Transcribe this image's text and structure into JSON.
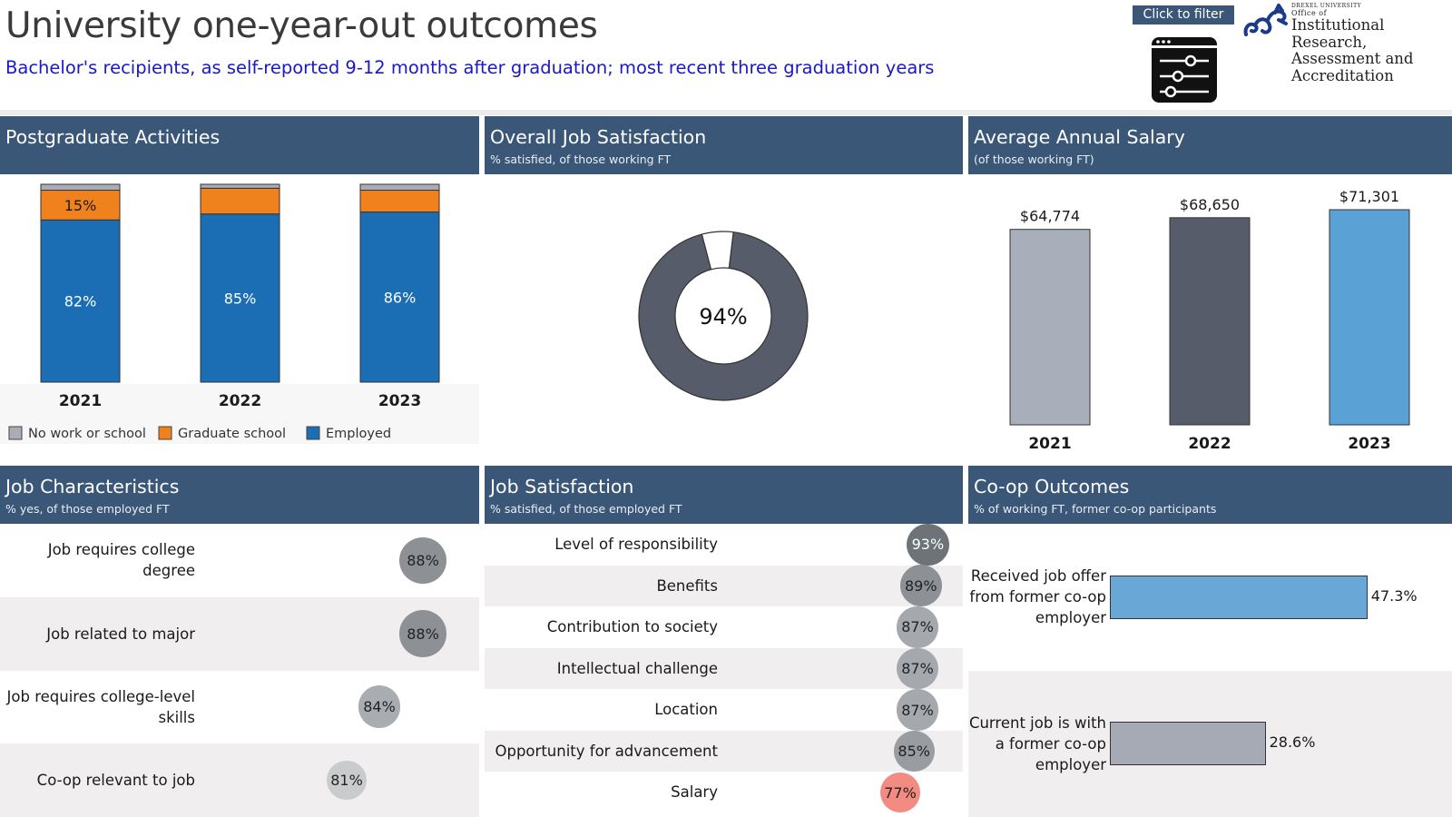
{
  "header": {
    "title": "University one-year-out outcomes",
    "subtitle": "Bachelor's recipients, as self-reported 9-12 months after graduation; most recent three graduation years",
    "filter_label": "Click to filter",
    "logo": {
      "university": "DREXEL UNIVERSITY",
      "office_of": "Office of",
      "line1": "Institutional Research,",
      "line2": "Assessment and",
      "line3": "Accreditation"
    }
  },
  "panels": {
    "postgrad": {
      "title": "Postgraduate Activities",
      "subtitle": ""
    },
    "satisfaction": {
      "title": "Overall Job Satisfaction",
      "subtitle": "% satisfied, of those working FT"
    },
    "salary": {
      "title": "Average Annual Salary",
      "subtitle": "(of those working FT)"
    },
    "jobchar": {
      "title": "Job Characteristics",
      "subtitle": "% yes, of those employed FT"
    },
    "jobsat": {
      "title": "Job Satisfaction",
      "subtitle": "% satisfied, of those employed FT"
    },
    "coop": {
      "title": "Co-op Outcomes",
      "subtitle": "% of working FT, former co-op participants"
    }
  },
  "colors": {
    "header_bg": "#3b5778",
    "employed": "#1b6eb3",
    "grad_school": "#f0821e",
    "no_work": "#a9adb6",
    "donut_dark": "#565c6a",
    "salary_2021": "#a9afba",
    "salary_2022": "#565c6a",
    "salary_2023": "#5aa2d6",
    "coop_bar1": "#69a8d6",
    "coop_bar2": "#a5aab4",
    "low_highlight": "#f28b82"
  },
  "chart_data": [
    {
      "type": "bar",
      "id": "postgrad",
      "stacked": true,
      "categories": [
        "2021",
        "2022",
        "2023"
      ],
      "series": [
        {
          "name": "Employed",
          "values": [
            82,
            85,
            86
          ],
          "labels": [
            "82%",
            "85%",
            "86%"
          ]
        },
        {
          "name": "Graduate school",
          "values": [
            15,
            13,
            11
          ],
          "labels": [
            "15%",
            "",
            ""
          ]
        },
        {
          "name": "No work or school",
          "values": [
            3,
            2,
            3
          ],
          "labels": [
            "",
            "",
            ""
          ]
        }
      ],
      "legend": [
        "No work or school",
        "Graduate school",
        "Employed"
      ],
      "legend_position": "bottom-left",
      "ylim": [
        0,
        100
      ]
    },
    {
      "type": "pie",
      "id": "satisfaction",
      "donut": true,
      "values": [
        94,
        6
      ],
      "center_label": "94%"
    },
    {
      "type": "bar",
      "id": "salary",
      "categories": [
        "2021",
        "2022",
        "2023"
      ],
      "values": [
        64774,
        68650,
        71301
      ],
      "labels": [
        "$64,774",
        "$68,650",
        "$71,301"
      ],
      "ylim": [
        0,
        75000
      ]
    },
    {
      "type": "table",
      "id": "jobchar",
      "rows": [
        {
          "label_lines": [
            "Job requires college",
            "degree"
          ],
          "value": 88,
          "display": "88%"
        },
        {
          "label_lines": [
            "Job related to major"
          ],
          "value": 88,
          "display": "88%"
        },
        {
          "label_lines": [
            "Job requires college-level",
            "skills"
          ],
          "value": 84,
          "display": "84%"
        },
        {
          "label_lines": [
            "Co-op relevant to job"
          ],
          "value": 81,
          "display": "81%"
        }
      ]
    },
    {
      "type": "table",
      "id": "jobsat",
      "rows": [
        {
          "label": "Level of responsibility",
          "value": 93,
          "display": "93%"
        },
        {
          "label": "Benefits",
          "value": 89,
          "display": "89%"
        },
        {
          "label": "Contribution to society",
          "value": 87,
          "display": "87%"
        },
        {
          "label": "Intellectual challenge",
          "value": 87,
          "display": "87%"
        },
        {
          "label": "Location",
          "value": 87,
          "display": "87%"
        },
        {
          "label": "Opportunity for advancement",
          "value": 85,
          "display": "85%"
        },
        {
          "label": "Salary",
          "value": 77,
          "display": "77%"
        }
      ]
    },
    {
      "type": "bar",
      "id": "coop",
      "orientation": "horizontal",
      "categories": [
        [
          "Received job offer",
          "from former co-op",
          "employer"
        ],
        [
          "Current job is with",
          "a former co-op",
          "employer"
        ]
      ],
      "values": [
        47.3,
        28.6
      ],
      "labels": [
        "47.3%",
        "28.6%"
      ],
      "xlim": [
        0,
        50
      ]
    }
  ]
}
